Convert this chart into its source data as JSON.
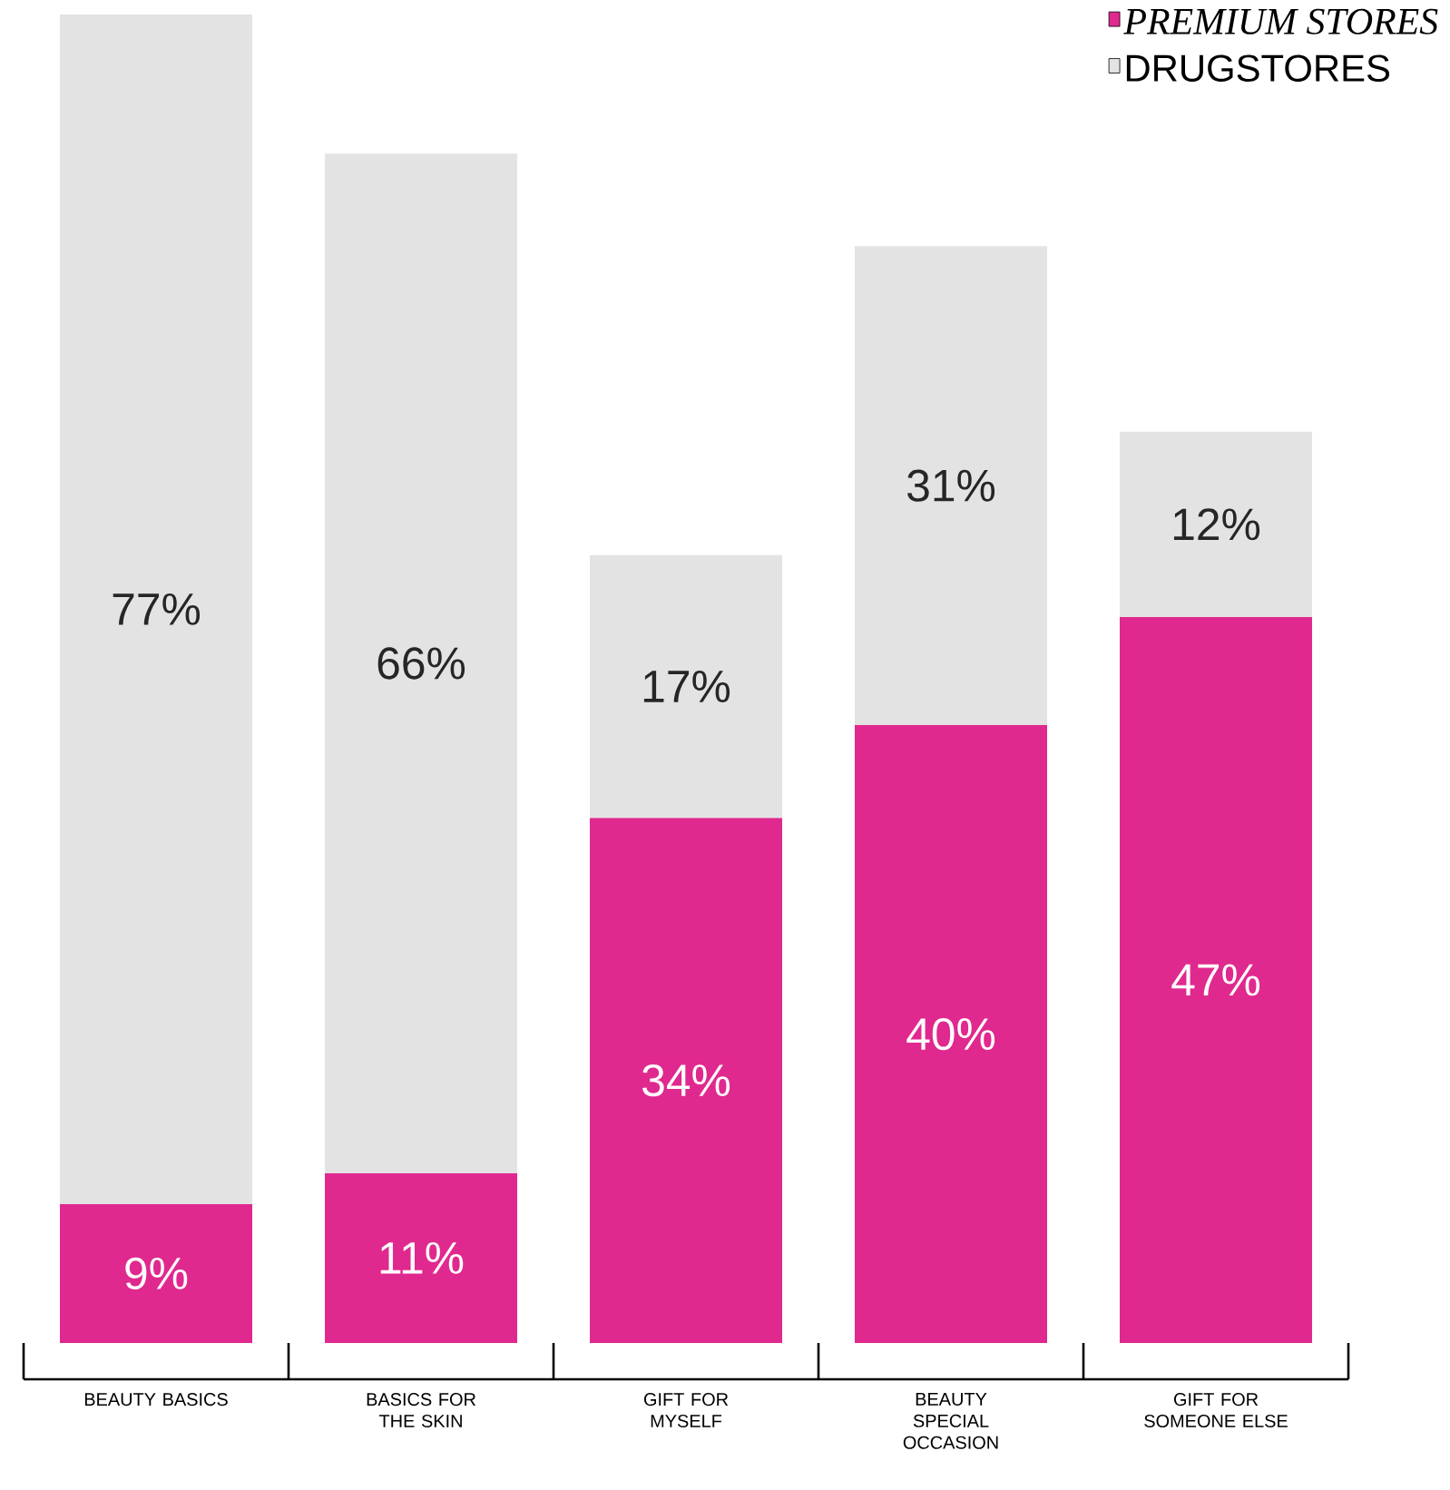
{
  "chart_data": {
    "type": "bar",
    "stacked": true,
    "legend": "top right",
    "categories": [
      "BEAUTY BASICS",
      "BASICS FOR THE SKIN",
      "GIFT FOR MYSELF",
      "BEAUTY SPECIAL OCCASION",
      "GIFT FOR SOMEONE ELSE"
    ],
    "series": [
      {
        "name": "PREMIUM STORES",
        "color": "#e0298f",
        "values": [
          9,
          11,
          34,
          40,
          47
        ],
        "value_labels": [
          "9%",
          "11%",
          "34%",
          "40%",
          "47%"
        ]
      },
      {
        "name": "DRUGSTORES",
        "color": "#e3e3e3",
        "values": [
          77,
          66,
          17,
          31,
          12
        ],
        "value_labels": [
          "77%",
          "66%",
          "17%",
          "31%",
          "12%"
        ]
      }
    ]
  }
}
